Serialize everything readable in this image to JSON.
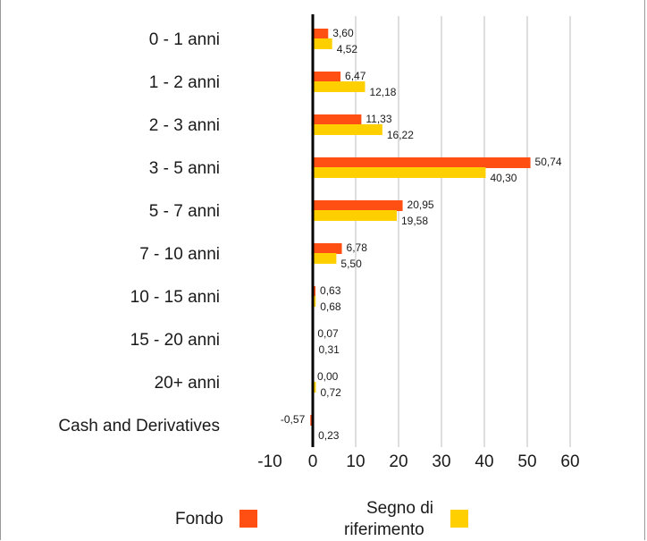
{
  "chart_data": {
    "type": "bar",
    "orientation": "horizontal",
    "categories": [
      "0 - 1 anni",
      "1 - 2 anni",
      "2 - 3 anni",
      "3 - 5 anni",
      "5 - 7 anni",
      "7 - 10 anni",
      "10 - 15 anni",
      "15 - 20 anni",
      "20+ anni",
      "Cash and Derivatives"
    ],
    "series": [
      {
        "name": "Fondo",
        "color": "#ff4f12",
        "values": [
          3.6,
          6.47,
          11.33,
          50.74,
          20.95,
          6.78,
          0.63,
          0.07,
          0.0,
          -0.57
        ],
        "labels": [
          "3,60",
          "6,47",
          "11,33",
          "50,74",
          "20,95",
          "6,78",
          "0,63",
          "0,07",
          "0,00",
          "-0,57"
        ]
      },
      {
        "name": "Segno di riferimento",
        "color": "#ffcf00",
        "values": [
          4.52,
          12.18,
          16.22,
          40.3,
          19.58,
          5.5,
          0.68,
          0.31,
          0.72,
          0.23
        ],
        "labels": [
          "4,52",
          "12,18",
          "16,22",
          "40,30",
          "19,58",
          "5,50",
          "0,68",
          "0,31",
          "0,72",
          "0,23"
        ]
      }
    ],
    "xlim": [
      -10,
      60
    ],
    "xticks": [
      "-10",
      "0",
      "10",
      "20",
      "30",
      "40",
      "50",
      "60"
    ],
    "grid": true,
    "legend_position": "bottom"
  },
  "legend": {
    "fondo_label": "Fondo",
    "benchmark_label_line1": "Segno di",
    "benchmark_label_line2": "riferimento",
    "fondo_color": "#ff4f12",
    "benchmark_color": "#ffcf00"
  }
}
